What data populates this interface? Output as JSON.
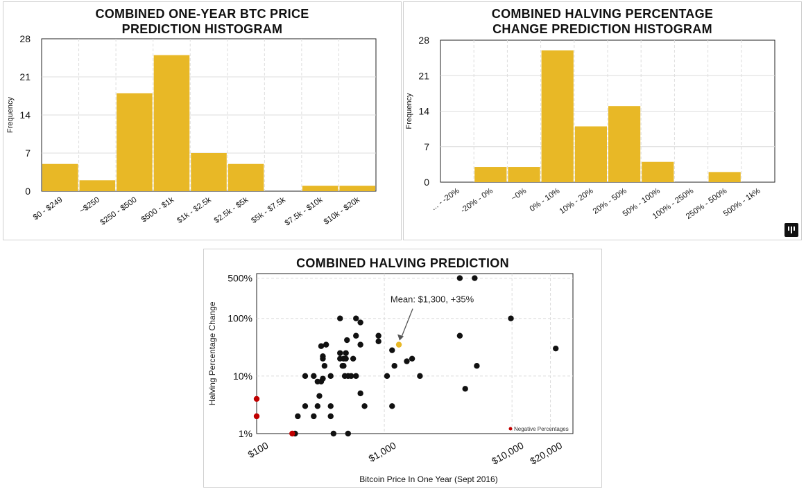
{
  "colors": {
    "bar": "#E8B826",
    "grid": "#dcdcdc",
    "axis": "#111111",
    "point": "#111111",
    "negative": "#C00000",
    "mean": "#E8B826"
  },
  "logo": {
    "icon": "pantera-logo-icon"
  },
  "chart_data": [
    {
      "type": "bar",
      "title_lines": [
        "COMBINED ONE-YEAR BTC PRICE",
        "PREDICTION HISTOGRAM"
      ],
      "xlabel": "",
      "ylabel": "Frequency",
      "ylim": [
        0,
        28
      ],
      "yticks": [
        0,
        7,
        14,
        21,
        28
      ],
      "grid": true,
      "categories": [
        "$0 - $249",
        "~$250",
        "$250 - $500",
        "$500 - $1k",
        "$1k - $2.5k",
        "$2.5k - $5k",
        "$5k - $7.5k",
        "$7.5k - $10k",
        "$10k - $20k"
      ],
      "values": [
        5,
        2,
        18,
        25,
        7,
        5,
        0,
        1,
        1
      ],
      "tick_labels": [
        "$0 - $249",
        "~$250",
        "$250 - $500",
        "$500 - $1k",
        "$1k - $2.5k",
        "$2.5k - $5k",
        "$5k - $7.5k",
        "$7.5k - $10k",
        "$10k - $20k"
      ]
    },
    {
      "type": "bar",
      "title_lines": [
        "COMBINED HALVING PERCENTAGE",
        "CHANGE PREDICTION HISTOGRAM"
      ],
      "xlabel": "",
      "ylabel": "Frequency",
      "ylim": [
        0,
        28
      ],
      "yticks": [
        0,
        7,
        14,
        21,
        28
      ],
      "grid": true,
      "categories": [
        "... - -20%",
        "-20% - 0%",
        "~0%",
        "0% - 10%",
        "10% - 20%",
        "20% - 50%",
        "50% - 100%",
        "100% - 250%",
        "250% - 500%",
        "500% - 1k%"
      ],
      "values": [
        0,
        3,
        3,
        26,
        11,
        15,
        4,
        0,
        2,
        0
      ],
      "tick_labels": [
        "... - -20%",
        "-20% - 0%",
        "~0%",
        "0% - 10%",
        "10% - 20%",
        "20% - 50%",
        "50% - 100%",
        "100% - 250%",
        "250% - 500%",
        "500% - 1k%"
      ]
    },
    {
      "type": "scatter",
      "title_lines": [
        "COMBINED HALVING PREDICTION"
      ],
      "xlabel": "Bitcoin Price In One Year (Sept 2016)",
      "ylabel": "Halving Percentage Change",
      "x_scale": "log",
      "y_scale": "log",
      "xlim": [
        100,
        30000
      ],
      "ylim": [
        1,
        600
      ],
      "xticks": [
        100,
        1000,
        10000,
        20000
      ],
      "xtick_labels": [
        "$100",
        "$1,000",
        "$10,000",
        "$20,000"
      ],
      "yticks": [
        1,
        10,
        100,
        500
      ],
      "ytick_labels": [
        "1%",
        "10%",
        "100%",
        "500%"
      ],
      "grid": true,
      "legend": {
        "label": "Negative Percentages",
        "placement": "bottom-right"
      },
      "annotation": {
        "text": "Mean: $1,300, +35%",
        "x": 1300,
        "y": 35
      },
      "series": [
        {
          "role": "predictions",
          "points": [
            [
              200,
              1
            ],
            [
              210,
              2
            ],
            [
              240,
              3
            ],
            [
              240,
              10
            ],
            [
              280,
              2
            ],
            [
              280,
              10
            ],
            [
              300,
              3
            ],
            [
              300,
              8
            ],
            [
              310,
              4.5
            ],
            [
              320,
              8
            ],
            [
              320,
              33
            ],
            [
              330,
              9
            ],
            [
              330,
              20
            ],
            [
              330,
              22
            ],
            [
              340,
              15
            ],
            [
              350,
              35
            ],
            [
              380,
              2
            ],
            [
              380,
              3
            ],
            [
              380,
              10
            ],
            [
              400,
              1
            ],
            [
              450,
              100
            ],
            [
              450,
              25
            ],
            [
              450,
              20
            ],
            [
              470,
              15
            ],
            [
              480,
              15
            ],
            [
              480,
              20
            ],
            [
              490,
              10
            ],
            [
              500,
              20
            ],
            [
              500,
              25
            ],
            [
              510,
              42
            ],
            [
              520,
              10
            ],
            [
              520,
              1
            ],
            [
              550,
              10
            ],
            [
              570,
              20
            ],
            [
              600,
              100
            ],
            [
              600,
              50
            ],
            [
              600,
              10
            ],
            [
              650,
              35
            ],
            [
              650,
              85
            ],
            [
              650,
              5
            ],
            [
              700,
              3
            ],
            [
              900,
              50
            ],
            [
              900,
              40
            ],
            [
              1050,
              10
            ],
            [
              1150,
              28
            ],
            [
              1150,
              3
            ],
            [
              1200,
              15
            ],
            [
              1500,
              18
            ],
            [
              1650,
              20
            ],
            [
              1900,
              10
            ],
            [
              3900,
              500
            ],
            [
              3900,
              50
            ],
            [
              4300,
              6
            ],
            [
              5100,
              500
            ],
            [
              5300,
              15
            ],
            [
              9800,
              100
            ],
            [
              22000,
              30
            ]
          ]
        },
        {
          "role": "negative percentages",
          "points": [
            [
              100,
              4
            ],
            [
              100,
              2
            ],
            [
              190,
              1
            ]
          ]
        },
        {
          "role": "mean",
          "points": [
            [
              1300,
              35
            ]
          ]
        }
      ]
    }
  ]
}
